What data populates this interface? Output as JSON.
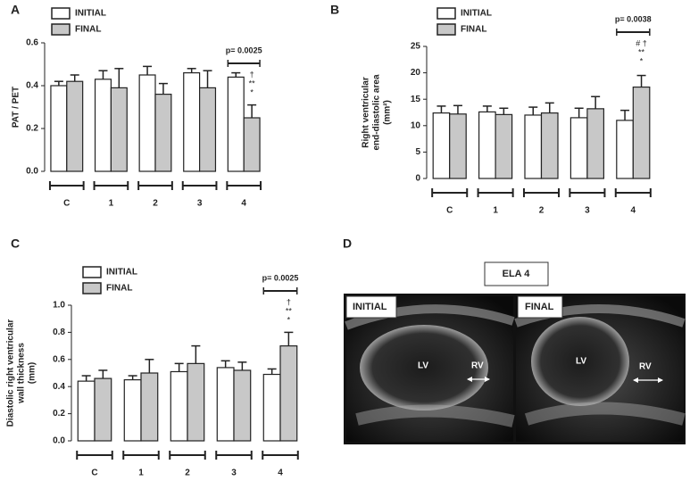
{
  "chart_data": [
    {
      "type": "bar",
      "panel": "A",
      "ylabel": [
        "PAT / PET"
      ],
      "categories": [
        "C",
        "1",
        "2",
        "3",
        "4"
      ],
      "series": [
        {
          "name": "INITIAL",
          "color": "#ffffff",
          "values": [
            0.4,
            0.43,
            0.45,
            0.46,
            0.44
          ],
          "errors": [
            0.02,
            0.04,
            0.04,
            0.02,
            0.02
          ]
        },
        {
          "name": "FINAL",
          "color": "#c8c8c8",
          "values": [
            0.42,
            0.39,
            0.36,
            0.39,
            0.25
          ],
          "errors": [
            0.03,
            0.09,
            0.05,
            0.08,
            0.06
          ]
        }
      ],
      "ylim": [
        0,
        0.6
      ],
      "yticks": [
        {
          "value": 0,
          "label": "0.0"
        },
        0.2,
        0.4,
        0.6
      ],
      "p_value": "p= 0.0025",
      "significance": [
        "†",
        "**",
        "*"
      ]
    },
    {
      "type": "bar",
      "panel": "B",
      "ylabel": [
        "Right ventricular",
        "end-diastolic area",
        "(mm²)"
      ],
      "categories": [
        "C",
        "1",
        "2",
        "3",
        "4"
      ],
      "series": [
        {
          "name": "INITIAL",
          "color": "#ffffff",
          "values": [
            12.4,
            12.6,
            12.0,
            11.5,
            11.0
          ],
          "errors": [
            1.3,
            1.1,
            1.5,
            1.8,
            1.9
          ]
        },
        {
          "name": "FINAL",
          "color": "#c8c8c8",
          "values": [
            12.2,
            12.1,
            12.4,
            13.2,
            17.3
          ],
          "errors": [
            1.6,
            1.2,
            1.9,
            2.3,
            2.2
          ]
        }
      ],
      "ylim": [
        0,
        25
      ],
      "yticks": [
        0,
        5,
        10,
        15,
        20,
        25
      ],
      "p_value": "p= 0.0038",
      "significance": [
        "# †",
        "**",
        "*"
      ]
    },
    {
      "type": "bar",
      "panel": "C",
      "ylabel": [
        "Diastolic right ventricular",
        "wall thickness",
        "(mm)"
      ],
      "categories": [
        "C",
        "1",
        "2",
        "3",
        "4"
      ],
      "series": [
        {
          "name": "INITIAL",
          "color": "#ffffff",
          "values": [
            0.44,
            0.45,
            0.51,
            0.54,
            0.49
          ],
          "errors": [
            0.04,
            0.03,
            0.06,
            0.05,
            0.04
          ]
        },
        {
          "name": "FINAL",
          "color": "#c8c8c8",
          "values": [
            0.46,
            0.5,
            0.57,
            0.52,
            0.7
          ],
          "errors": [
            0.06,
            0.1,
            0.13,
            0.06,
            0.1
          ]
        }
      ],
      "ylim": [
        0,
        1.0
      ],
      "yticks": [
        {
          "value": 0,
          "label": "0.0"
        },
        0.2,
        0.4,
        0.6,
        0.8,
        {
          "value": 1.0,
          "label": "1.0"
        }
      ],
      "p_value": "p= 0.0025",
      "significance": [
        "†",
        "**",
        "*"
      ]
    }
  ],
  "image_panel": {
    "panel": "D",
    "title": "ELA 4",
    "images": [
      {
        "label": "INITIAL",
        "lv": "LV",
        "rv": "RV"
      },
      {
        "label": "FINAL",
        "lv": "LV",
        "rv": "RV"
      }
    ]
  }
}
